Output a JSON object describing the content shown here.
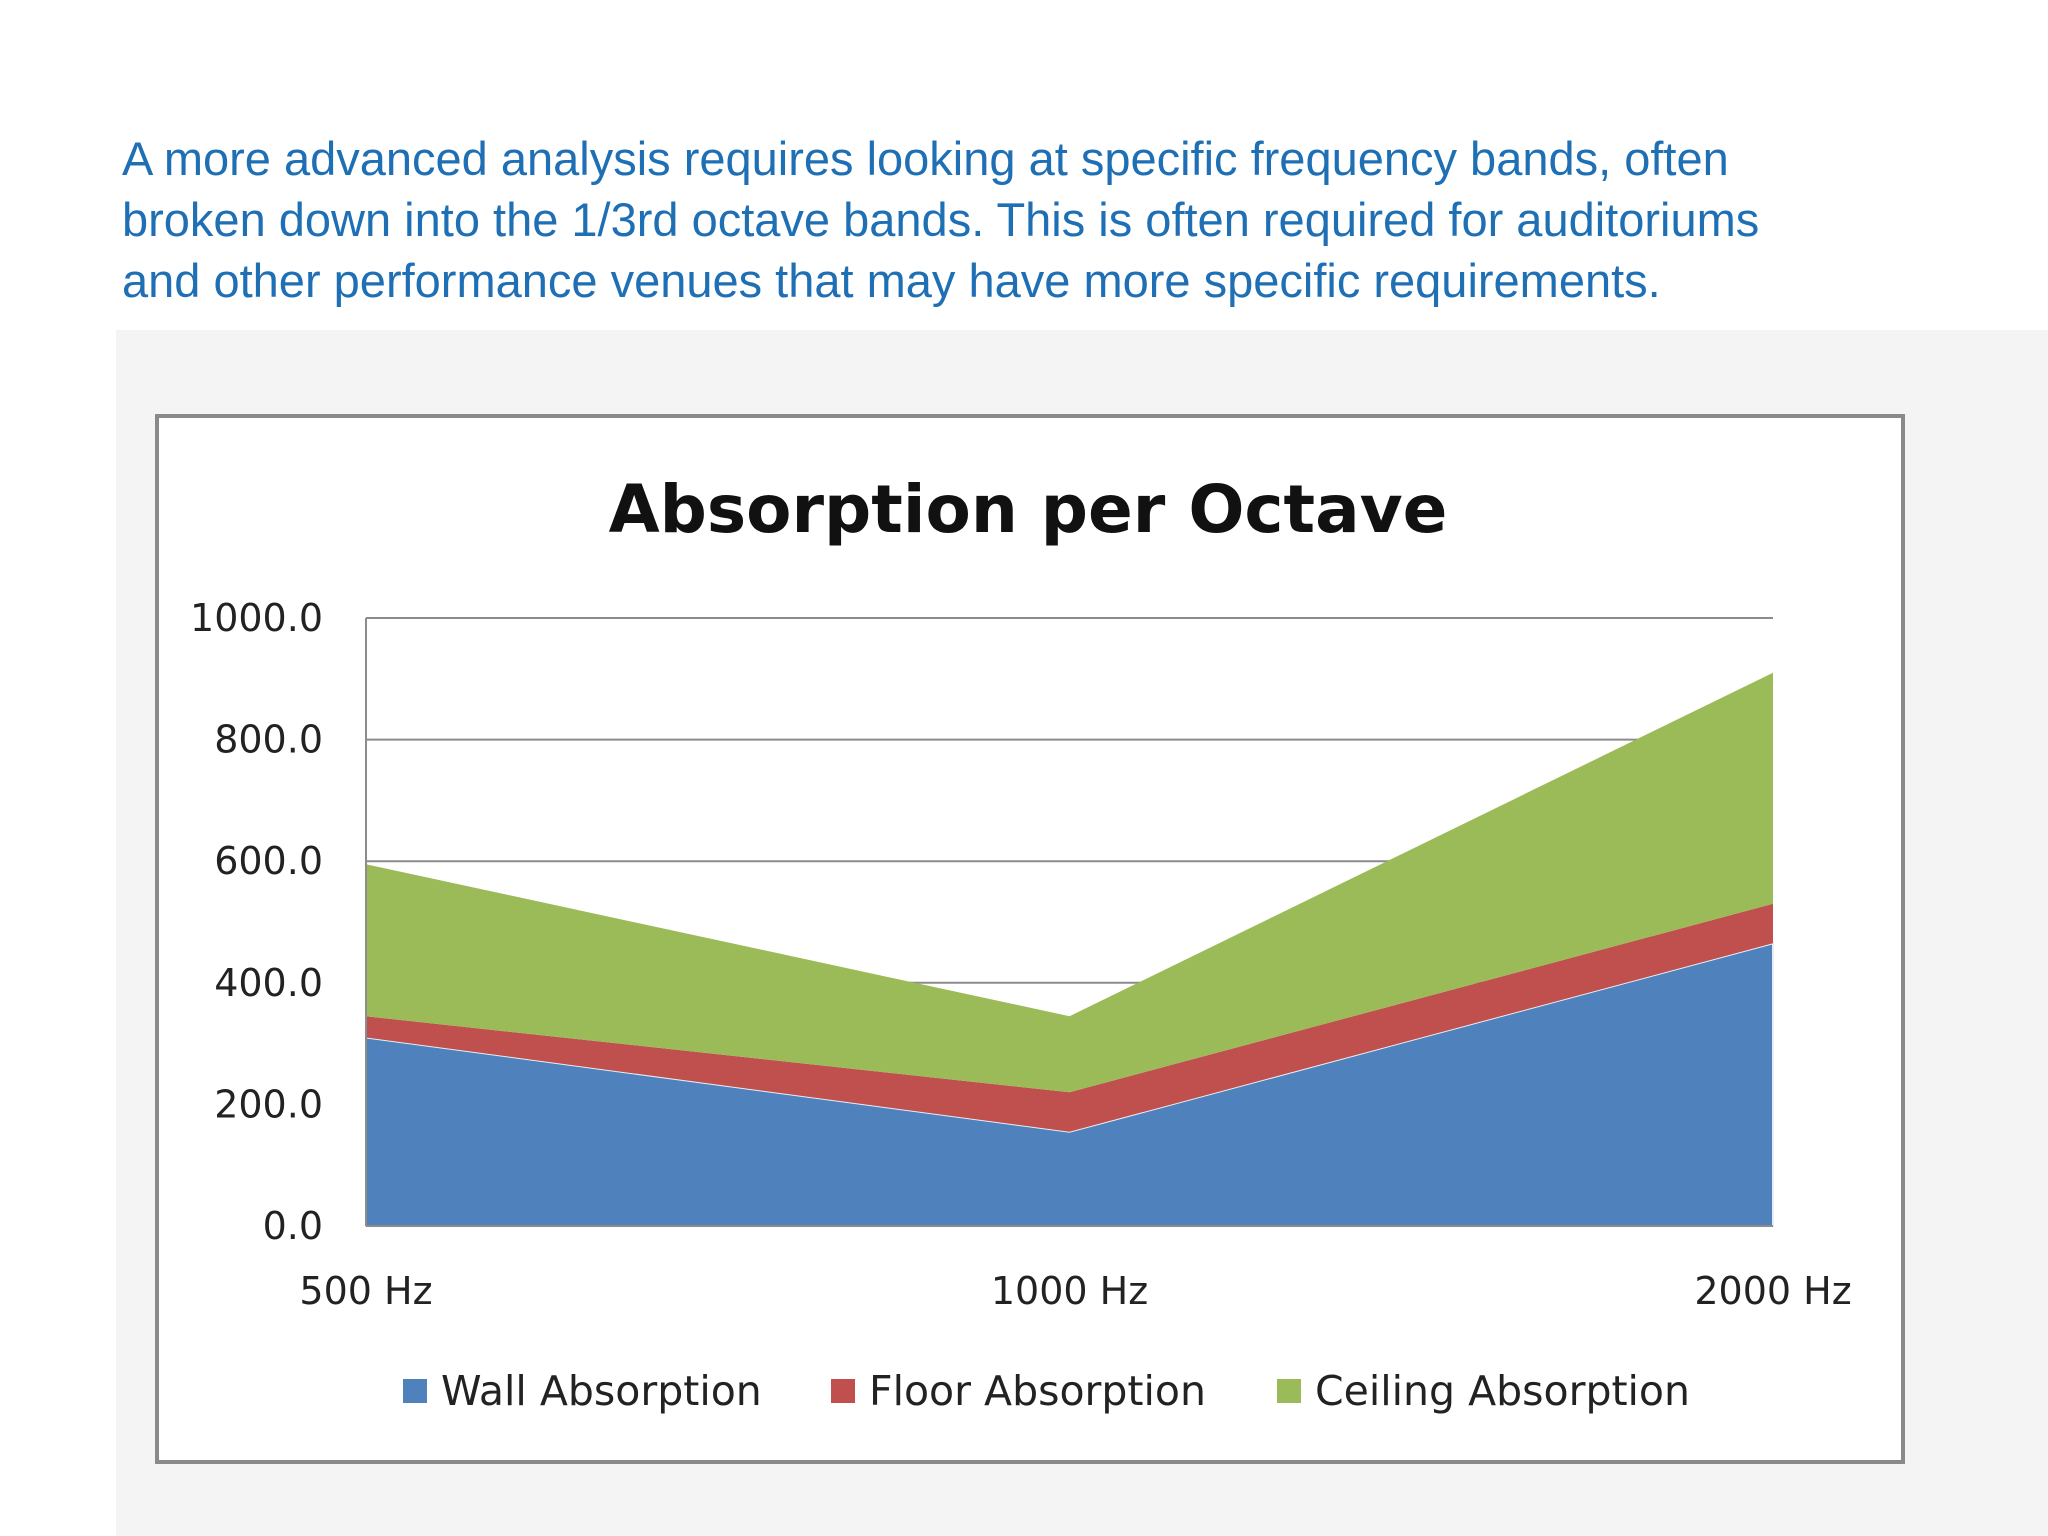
{
  "intro_lines": [
    "A more advanced analysis requires looking at specific frequency bands, often",
    "broken down into the 1/3rd octave bands. This is often required for auditoriums",
    "and other performance venues that may have more specific requirements."
  ],
  "colors": {
    "intro_text": "#1f6fb5",
    "wall": "#4f81bd",
    "floor": "#c0504d",
    "ceiling": "#9bbb59",
    "gridline": "#8c8c8c",
    "frame": "#8a8a8a"
  },
  "chart_data": {
    "type": "area",
    "stacked": true,
    "title": "Absorption per Octave",
    "xlabel": "",
    "ylabel": "",
    "categories": [
      "500 Hz",
      "1000 Hz",
      "2000 Hz"
    ],
    "ylim": [
      0,
      1000
    ],
    "yticks": [
      "0.0",
      "200.0",
      "400.0",
      "600.0",
      "800.0",
      "1000.0"
    ],
    "grid": true,
    "legend_position": "bottom",
    "series": [
      {
        "name": "Wall Absorption",
        "color": "#4f81bd",
        "values": [
          310,
          155,
          465
        ]
      },
      {
        "name": "Floor Absorption",
        "color": "#c0504d",
        "values": [
          35,
          65,
          65
        ]
      },
      {
        "name": "Ceiling Absorption",
        "color": "#9bbb59",
        "values": [
          250,
          125,
          380
        ]
      }
    ]
  }
}
